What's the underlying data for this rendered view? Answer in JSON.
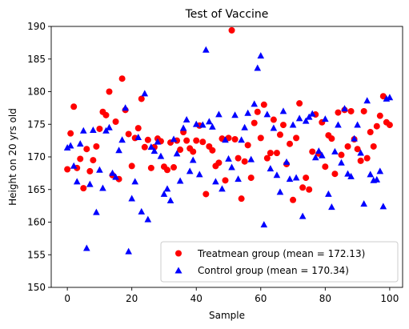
{
  "chart_data": {
    "type": "scatter",
    "title": "Test of Vaccine",
    "xlabel": "Sample",
    "ylabel": "Height on 20 yrs old",
    "xlim": [
      -5,
      104
    ],
    "ylim": [
      150,
      190
    ],
    "xticks": [
      0,
      20,
      40,
      60,
      80,
      100
    ],
    "yticks": [
      150,
      155,
      160,
      165,
      170,
      175,
      180,
      185,
      190
    ],
    "grid": false,
    "legend_position": "lower-right",
    "series": [
      {
        "name": "Treatmean group (mean = 172.13)",
        "color": "#ff0000",
        "marker": "circle",
        "points": [
          [
            0,
            168.1
          ],
          [
            1,
            173.6
          ],
          [
            2,
            177.7
          ],
          [
            3,
            168.3
          ],
          [
            4,
            169.7
          ],
          [
            5,
            165.2
          ],
          [
            6,
            171.2
          ],
          [
            7,
            167.8
          ],
          [
            8,
            169.5
          ],
          [
            9,
            171.6
          ],
          [
            10,
            174.3
          ],
          [
            11,
            176.9
          ],
          [
            12,
            176.4
          ],
          [
            13,
            180.0
          ],
          [
            14,
            167.2
          ],
          [
            15,
            175.4
          ],
          [
            16,
            166.6
          ],
          [
            17,
            182.0
          ],
          [
            18,
            177.2
          ],
          [
            19,
            173.5
          ],
          [
            20,
            168.6
          ],
          [
            21,
            172.9
          ],
          [
            22,
            174.4
          ],
          [
            23,
            178.9
          ],
          [
            24,
            171.5
          ],
          [
            25,
            172.6
          ],
          [
            26,
            168.3
          ],
          [
            27,
            171.5
          ],
          [
            28,
            172.8
          ],
          [
            29,
            172.4
          ],
          [
            30,
            168.5
          ],
          [
            31,
            168.0
          ],
          [
            32,
            172.2
          ],
          [
            33,
            168.4
          ],
          [
            34,
            172.5
          ],
          [
            35,
            171.1
          ],
          [
            36,
            173.8
          ],
          [
            37,
            172.5
          ],
          [
            38,
            171.3
          ],
          [
            39,
            170.8
          ],
          [
            40,
            172.5
          ],
          [
            41,
            174.8
          ],
          [
            42,
            172.3
          ],
          [
            43,
            164.3
          ],
          [
            44,
            171.6
          ],
          [
            45,
            171.0
          ],
          [
            46,
            168.6
          ],
          [
            47,
            169.1
          ],
          [
            48,
            172.8
          ],
          [
            49,
            166.4
          ],
          [
            50,
            172.9
          ],
          [
            51,
            189.4
          ],
          [
            52,
            172.7
          ],
          [
            53,
            169.8
          ],
          [
            54,
            163.6
          ],
          [
            55,
            169.3
          ],
          [
            56,
            171.8
          ],
          [
            57,
            166.8
          ],
          [
            58,
            175.2
          ],
          [
            59,
            176.9
          ],
          [
            60,
            172.9
          ],
          [
            61,
            178.0
          ],
          [
            62,
            169.8
          ],
          [
            63,
            170.6
          ],
          [
            64,
            175.7
          ],
          [
            65,
            170.6
          ],
          [
            66,
            173.4
          ],
          [
            67,
            174.9
          ],
          [
            68,
            168.9
          ],
          [
            69,
            172.0
          ],
          [
            70,
            163.4
          ],
          [
            71,
            172.9
          ],
          [
            72,
            178.2
          ],
          [
            73,
            165.3
          ],
          [
            74,
            166.8
          ],
          [
            75,
            165.0
          ],
          [
            76,
            170.8
          ],
          [
            77,
            176.5
          ],
          [
            78,
            170.5
          ],
          [
            79,
            175.3
          ],
          [
            80,
            168.5
          ],
          [
            81,
            173.3
          ],
          [
            82,
            172.8
          ],
          [
            83,
            167.4
          ],
          [
            84,
            176.8
          ],
          [
            85,
            170.3
          ],
          [
            86,
            177.2
          ],
          [
            87,
            171.6
          ],
          [
            88,
            177.0
          ],
          [
            89,
            172.7
          ],
          [
            90,
            171.2
          ],
          [
            91,
            169.4
          ],
          [
            92,
            177.0
          ],
          [
            93,
            169.8
          ],
          [
            94,
            173.8
          ],
          [
            95,
            171.6
          ],
          [
            96,
            174.7
          ],
          [
            97,
            176.3
          ],
          [
            98,
            179.3
          ],
          [
            99,
            175.3
          ],
          [
            100,
            174.9
          ]
        ]
      },
      {
        "name": "Control group (mean = 170.34)",
        "color": "#0000ff",
        "marker": "triangle",
        "points": [
          [
            0,
            171.4
          ],
          [
            1,
            171.7
          ],
          [
            2,
            168.6
          ],
          [
            3,
            166.2
          ],
          [
            4,
            172.0
          ],
          [
            5,
            174.0
          ],
          [
            6,
            156.0
          ],
          [
            7,
            165.8
          ],
          [
            8,
            174.1
          ],
          [
            9,
            161.5
          ],
          [
            10,
            168.0
          ],
          [
            11,
            165.2
          ],
          [
            12,
            174.0
          ],
          [
            13,
            174.5
          ],
          [
            14,
            167.5
          ],
          [
            15,
            166.9
          ],
          [
            16,
            171.0
          ],
          [
            17,
            172.6
          ],
          [
            18,
            177.5
          ],
          [
            19,
            155.5
          ],
          [
            20,
            163.6
          ],
          [
            21,
            166.2
          ],
          [
            22,
            173.0
          ],
          [
            23,
            161.6
          ],
          [
            24,
            179.7
          ],
          [
            25,
            160.4
          ],
          [
            26,
            171.5
          ],
          [
            27,
            170.9
          ],
          [
            28,
            172.3
          ],
          [
            29,
            170.1
          ],
          [
            30,
            164.3
          ],
          [
            31,
            165.1
          ],
          [
            32,
            163.3
          ],
          [
            33,
            172.7
          ],
          [
            34,
            170.5
          ],
          [
            35,
            166.3
          ],
          [
            36,
            174.4
          ],
          [
            37,
            175.7
          ],
          [
            38,
            167.8
          ],
          [
            39,
            169.5
          ],
          [
            40,
            175.0
          ],
          [
            41,
            167.3
          ],
          [
            42,
            174.9
          ],
          [
            43,
            186.4
          ],
          [
            44,
            175.4
          ],
          [
            45,
            174.6
          ],
          [
            46,
            166.2
          ],
          [
            47,
            176.5
          ],
          [
            48,
            165.1
          ],
          [
            49,
            172.6
          ],
          [
            50,
            169.7
          ],
          [
            51,
            168.4
          ],
          [
            52,
            176.4
          ],
          [
            53,
            166.6
          ],
          [
            54,
            172.6
          ],
          [
            55,
            174.5
          ],
          [
            56,
            176.7
          ],
          [
            57,
            169.6
          ],
          [
            58,
            178.1
          ],
          [
            59,
            183.6
          ],
          [
            60,
            185.5
          ],
          [
            61,
            159.6
          ],
          [
            62,
            176.5
          ],
          [
            63,
            168.2
          ],
          [
            64,
            174.4
          ],
          [
            65,
            167.2
          ],
          [
            66,
            164.6
          ],
          [
            67,
            177.0
          ],
          [
            68,
            169.2
          ],
          [
            69,
            166.6
          ],
          [
            70,
            174.9
          ],
          [
            71,
            166.8
          ],
          [
            72,
            175.9
          ],
          [
            73,
            160.9
          ],
          [
            74,
            175.5
          ],
          [
            75,
            176.1
          ],
          [
            76,
            176.6
          ],
          [
            77,
            169.9
          ],
          [
            78,
            170.9
          ],
          [
            79,
            170.2
          ],
          [
            80,
            175.8
          ],
          [
            81,
            164.3
          ],
          [
            82,
            162.3
          ],
          [
            83,
            170.8
          ],
          [
            84,
            174.9
          ],
          [
            85,
            169.1
          ],
          [
            86,
            177.4
          ],
          [
            87,
            167.4
          ],
          [
            88,
            167.0
          ],
          [
            89,
            172.8
          ],
          [
            90,
            174.9
          ],
          [
            91,
            170.6
          ],
          [
            92,
            162.8
          ],
          [
            93,
            178.6
          ],
          [
            94,
            167.3
          ],
          [
            95,
            166.4
          ],
          [
            96,
            166.5
          ],
          [
            97,
            167.8
          ],
          [
            98,
            162.4
          ],
          [
            99,
            178.9
          ],
          [
            100,
            179.1
          ]
        ]
      }
    ]
  }
}
